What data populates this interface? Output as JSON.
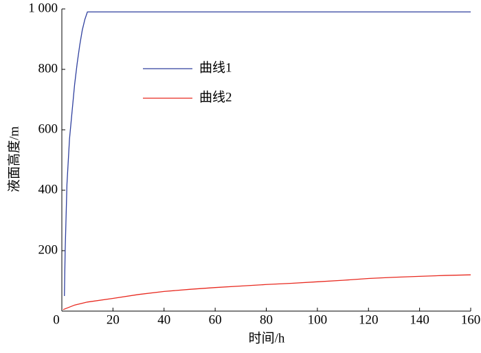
{
  "chart_data": {
    "type": "line",
    "x_label": "时间/h",
    "y_label": "液面高度/m",
    "xlim": [
      0,
      160
    ],
    "xticks": [
      0,
      20,
      40,
      60,
      80,
      100,
      120,
      140,
      160
    ],
    "ylim": [
      0,
      1000
    ],
    "yticks": [
      200,
      400,
      600,
      800,
      {
        "value": 1000,
        "label": "1 000"
      }
    ],
    "grid": false,
    "legend": "upper left",
    "series": [
      {
        "name": "曲线1",
        "color": "#2e3f9e",
        "x": [
          1,
          1.3,
          2,
          3,
          4,
          5,
          6,
          7,
          8,
          9,
          10,
          160
        ],
        "values": [
          50,
          200,
          420,
          570,
          660,
          750,
          820,
          880,
          930,
          965,
          990,
          990
        ]
      },
      {
        "name": "曲线2",
        "color": "#e8281e",
        "x": [
          0.5,
          5,
          10,
          20,
          30,
          40,
          50,
          60,
          70,
          80,
          90,
          100,
          110,
          120,
          130,
          140,
          150,
          160
        ],
        "values": [
          5,
          20,
          30,
          42,
          55,
          65,
          72,
          78,
          83,
          88,
          92,
          97,
          102,
          108,
          112,
          115,
          118,
          120
        ]
      }
    ]
  }
}
